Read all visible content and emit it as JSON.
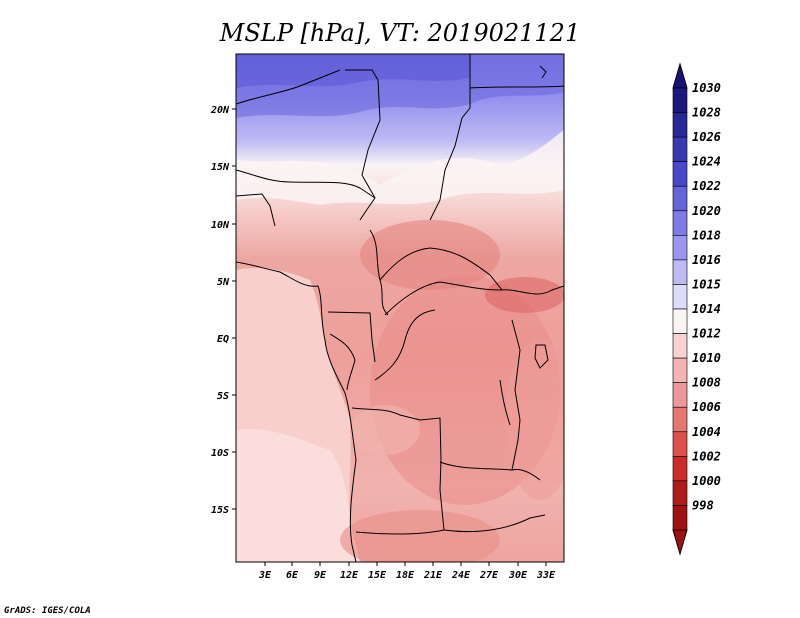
{
  "title": "MSLP [hPa], VT: 2019021121",
  "credit": "GrADS: IGES/COLA",
  "lat_labels": [
    "20N",
    "15N",
    "10N",
    "5N",
    "EQ",
    "5S",
    "10S",
    "15S"
  ],
  "lon_labels": [
    "3E",
    "6E",
    "9E",
    "12E",
    "15E",
    "18E",
    "21E",
    "24E",
    "27E",
    "30E",
    "33E"
  ],
  "colorbar": {
    "labels": [
      "1030",
      "1028",
      "1026",
      "1024",
      "1022",
      "1020",
      "1018",
      "1016",
      "1015",
      "1014",
      "1012",
      "1010",
      "1008",
      "1006",
      "1004",
      "1002",
      "1000",
      "998"
    ],
    "colors": [
      "#1c1880",
      "#282899",
      "#3838b3",
      "#4848c8",
      "#6464db",
      "#7e7ae6",
      "#9b96ef",
      "#bdbaf5",
      "#dedcfa",
      "#fbf4f4",
      "#f8d2d0",
      "#f2b5b2",
      "#eb9896",
      "#e57673",
      "#dc5148",
      "#cb2e28",
      "#b01c16",
      "#a01212"
    ]
  }
}
